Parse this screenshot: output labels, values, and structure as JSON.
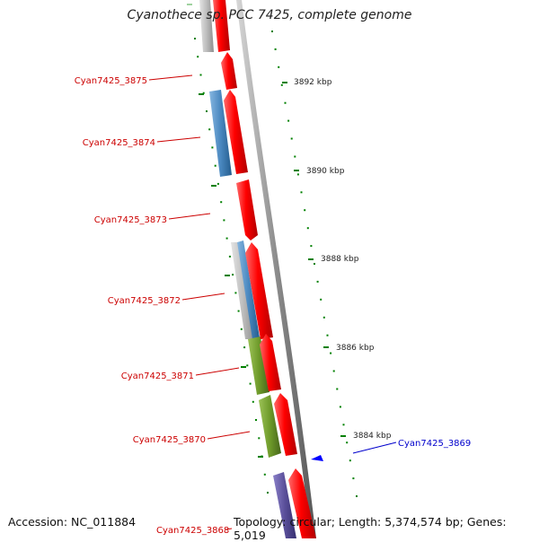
{
  "title": "Cyanothece sp. PCC 7425, complete genome",
  "accession": "Accession: NC_011884",
  "topology": "Topology: circular; Length: 5,374,574 bp; Genes: 5,019",
  "colors": {
    "forward": "#ff0000",
    "reverse_gray": "#b8b8b8",
    "blue": "#4a88c0",
    "green": "#6e9a2a",
    "purple": "#5a4f9a",
    "tick": "#008000",
    "label_red": "#cc0000",
    "label_blue": "#0000cc",
    "backbone": "#8c8c8c"
  },
  "scale_labels": [
    "3892 kbp",
    "3890 kbp",
    "3888 kbp",
    "3886 kbp",
    "3884 kbp"
  ],
  "gene_labels": [
    {
      "text": "Cyan7425_3875",
      "color": "red"
    },
    {
      "text": "Cyan7425_3874",
      "color": "red"
    },
    {
      "text": "Cyan7425_3873",
      "color": "red"
    },
    {
      "text": "Cyan7425_3872",
      "color": "red"
    },
    {
      "text": "Cyan7425_3871",
      "color": "red"
    },
    {
      "text": "Cyan7425_3870",
      "color": "red"
    },
    {
      "text": "Cyan7425_3869",
      "color": "blue"
    },
    {
      "text": "Cyan7425_3868",
      "color": "red"
    }
  ]
}
